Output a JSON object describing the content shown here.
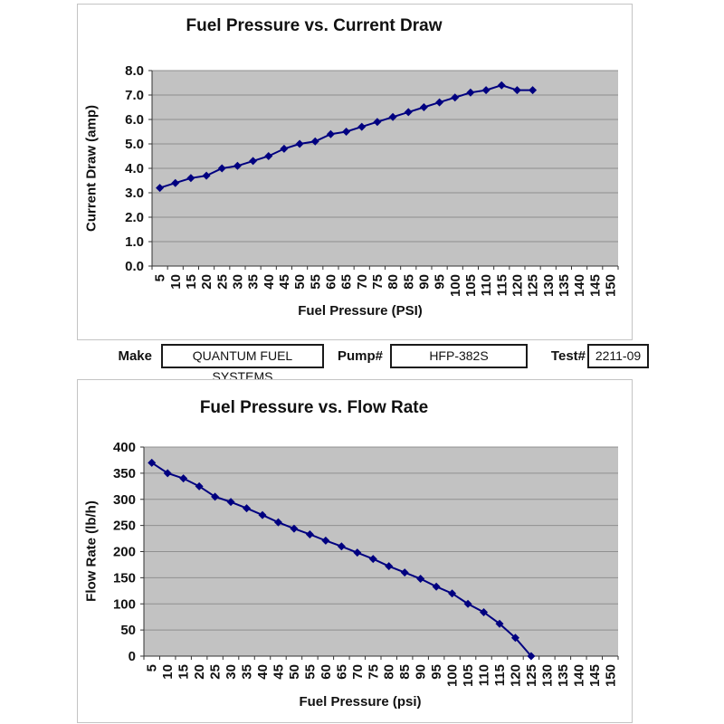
{
  "form": {
    "fields": [
      {
        "label": "Make",
        "value": "QUANTUM FUEL SYSTEMS"
      },
      {
        "label": "Pump#",
        "value": "HFP-382S"
      },
      {
        "label": "Test#",
        "value": "2211-09"
      }
    ]
  },
  "chart_data": [
    {
      "type": "line",
      "title": "Fuel Pressure vs. Current Draw",
      "xlabel": "Fuel Pressure (PSI)",
      "ylabel": "Current Draw (amp)",
      "categories": [
        "5",
        "10",
        "15",
        "20",
        "25",
        "30",
        "35",
        "40",
        "45",
        "50",
        "55",
        "60",
        "65",
        "70",
        "75",
        "80",
        "85",
        "90",
        "95",
        "100",
        "105",
        "110",
        "115",
        "120",
        "125",
        "130",
        "135",
        "140",
        "145",
        "150"
      ],
      "x": [
        5,
        10,
        15,
        20,
        25,
        30,
        35,
        40,
        45,
        50,
        55,
        60,
        65,
        70,
        75,
        80,
        85,
        90,
        95,
        100,
        105,
        110,
        115,
        120,
        125
      ],
      "values": [
        3.2,
        3.4,
        3.6,
        3.7,
        4.0,
        4.1,
        4.3,
        4.5,
        4.8,
        5.0,
        5.1,
        5.4,
        5.5,
        5.7,
        5.9,
        6.1,
        6.3,
        6.5,
        6.7,
        6.9,
        7.1,
        7.2,
        7.4,
        7.2,
        7.2
      ],
      "ylim": [
        0,
        8
      ],
      "ytick_labels": [
        "0.0",
        "1.0",
        "2.0",
        "3.0",
        "4.0",
        "5.0",
        "6.0",
        "7.0",
        "8.0"
      ],
      "grid": true,
      "legend": "none",
      "marker": "diamond",
      "line_color": "#000080",
      "plot_bg": "#c2c2c2",
      "grid_color": "#8f8f8f"
    },
    {
      "type": "line",
      "title": "Fuel Pressure vs. Flow Rate",
      "xlabel": "Fuel Pressure (psi)",
      "ylabel": "Flow Rate (lb/h)",
      "categories": [
        "5",
        "10",
        "15",
        "20",
        "25",
        "30",
        "35",
        "40",
        "45",
        "50",
        "55",
        "60",
        "65",
        "70",
        "75",
        "80",
        "85",
        "90",
        "95",
        "100",
        "105",
        "110",
        "115",
        "120",
        "125",
        "130",
        "135",
        "140",
        "145",
        "150"
      ],
      "x": [
        5,
        10,
        15,
        20,
        25,
        30,
        35,
        40,
        45,
        50,
        55,
        60,
        65,
        70,
        75,
        80,
        85,
        90,
        95,
        100,
        105,
        110,
        115,
        120,
        125
      ],
      "values": [
        370,
        350,
        340,
        325,
        305,
        295,
        283,
        270,
        256,
        244,
        233,
        221,
        210,
        198,
        186,
        172,
        160,
        148,
        133,
        120,
        100,
        84,
        62,
        35,
        0
      ],
      "ylim": [
        0,
        400
      ],
      "ytick_labels": [
        "0",
        "50",
        "100",
        "150",
        "200",
        "250",
        "300",
        "350",
        "400"
      ],
      "grid": true,
      "legend": "none",
      "marker": "diamond",
      "line_color": "#000080",
      "plot_bg": "#c2c2c2",
      "grid_color": "#8f8f8f"
    }
  ]
}
